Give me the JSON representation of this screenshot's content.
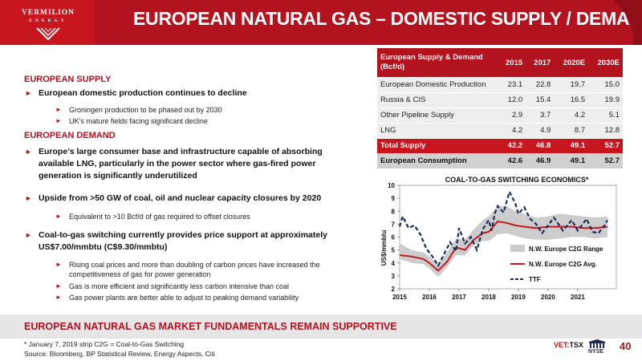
{
  "header": {
    "logo_name": "VERMILION",
    "logo_sub": "ENERGY",
    "title": "EUROPEAN NATURAL GAS – DOMESTIC SUPPLY / DEMAND"
  },
  "left": {
    "supply_heading": "EUROPEAN SUPPLY",
    "supply_bullet": "European domestic production continues to decline",
    "supply_sub": [
      "Groningen production to be phased out by 2030",
      "UK’s mature fields facing significant decline"
    ],
    "demand_heading": "EUROPEAN DEMAND",
    "demand_bullets": [
      "Europe’s large consumer base and infrastructure capable of absorbing available LNG, particularly in the power sector where gas-fired power generation is significantly underutilized",
      "Upside from >50 GW of coal, oil and nuclear capacity closures by 2020",
      "Coal-to-gas switching currently provides price support at approximately US$7.00/mmbtu (C$9.30/mmbtu)"
    ],
    "demand_sub_1": "Equivalent to >10 Bcf/d of gas required to offset closures",
    "demand_sub_2": [
      "Rising coal prices and more than doubling of carbon prices have increased the competitiveness of gas for power generation",
      "Gas is more efficient and significantly less carbon intensive than coal",
      "Gas power plants are better able to adjust to peaking demand variability"
    ]
  },
  "table": {
    "header": [
      "European Supply & Demand (Bcf/d)",
      "2015",
      "2017",
      "2020E",
      "2030E"
    ],
    "rows": [
      [
        "European Domestic Production",
        "23.1",
        "22.8",
        "19.7",
        "15.0"
      ],
      [
        "Russia & CIS",
        "12.0",
        "15.4",
        "16.5",
        "19.9"
      ],
      [
        "Other Pipeline Supply",
        "2.9",
        "3.7",
        "4.2",
        "5.1"
      ],
      [
        "LNG",
        "4.2",
        "4.9",
        "8.7",
        "12.8"
      ]
    ],
    "total": [
      "Total Supply",
      "42.2",
      "46.8",
      "49.1",
      "52.7"
    ],
    "consumption": [
      "European Consumption",
      "42.6",
      "46.9",
      "49.1",
      "52.7"
    ]
  },
  "chart_data": {
    "type": "line",
    "title": "COAL-TO-GAS SWITCHING ECONOMICS*",
    "ylabel": "US$/mmbtu",
    "xlabel": "",
    "ylim": [
      2,
      10
    ],
    "yticks": [
      "2",
      "3",
      "4",
      "5",
      "6",
      "7",
      "8",
      "9",
      "10"
    ],
    "xlim": [
      2015,
      2022.3
    ],
    "xticks": [
      "2015",
      "2016",
      "2017",
      "2018",
      "2019",
      "2020",
      "2021"
    ],
    "grid": false,
    "legend_position": "bottom-right",
    "series": [
      {
        "name": "N.W. Europe C2G Range",
        "kind": "band",
        "color": "#cccccc",
        "x": [
          2015.0,
          2015.4,
          2015.8,
          2016.0,
          2016.3,
          2016.6,
          2016.9,
          2017.2,
          2017.5,
          2017.8,
          2018.0,
          2018.3,
          2018.6,
          2018.9,
          2019.2,
          2019.6,
          2020.0,
          2020.4,
          2020.8,
          2021.2,
          2021.6,
          2022.0
        ],
        "low": [
          4.3,
          4.0,
          3.9,
          3.6,
          2.9,
          3.7,
          4.6,
          4.6,
          5.4,
          5.7,
          5.7,
          6.2,
          6.3,
          6.1,
          5.9,
          5.8,
          5.8,
          5.9,
          6.0,
          6.0,
          5.9,
          6.0
        ],
        "high": [
          5.5,
          5.0,
          4.8,
          4.5,
          3.9,
          4.8,
          5.9,
          5.8,
          6.6,
          7.3,
          7.6,
          8.4,
          8.4,
          8.0,
          7.8,
          7.5,
          7.6,
          7.8,
          7.7,
          7.6,
          7.5,
          7.6
        ]
      },
      {
        "name": "N.W. Europe C2G Avg.",
        "kind": "line",
        "color": "#c8161f",
        "x": [
          2015.0,
          2015.4,
          2015.8,
          2016.0,
          2016.3,
          2016.6,
          2016.9,
          2017.2,
          2017.5,
          2017.8,
          2018.0,
          2018.3,
          2018.6,
          2018.9,
          2019.2,
          2019.6,
          2020.0,
          2020.4,
          2020.8,
          2021.2,
          2021.6,
          2022.0
        ],
        "y": [
          4.6,
          4.5,
          4.3,
          4.0,
          3.4,
          4.1,
          5.2,
          5.0,
          5.8,
          6.3,
          6.4,
          7.2,
          7.1,
          6.9,
          6.8,
          6.7,
          6.8,
          6.8,
          6.8,
          6.7,
          6.7,
          6.8
        ]
      },
      {
        "name": "TTF",
        "kind": "dashed",
        "color": "#1a2b5c",
        "x": [
          2015.0,
          2015.1,
          2015.3,
          2015.5,
          2015.7,
          2015.9,
          2016.1,
          2016.3,
          2016.5,
          2016.7,
          2016.9,
          2017.0,
          2017.2,
          2017.4,
          2017.6,
          2017.8,
          2018.0,
          2018.1,
          2018.2,
          2018.3,
          2018.5,
          2018.7,
          2018.9,
          2019.0,
          2019.2,
          2019.4,
          2019.6,
          2019.8,
          2020.0,
          2020.2,
          2020.5,
          2020.8,
          2021.0,
          2021.3,
          2021.5,
          2021.7,
          2021.9,
          2022.0
        ],
        "y": [
          6.8,
          7.6,
          6.7,
          6.9,
          6.2,
          5.1,
          4.5,
          3.8,
          4.7,
          5.6,
          4.9,
          6.7,
          5.5,
          6.0,
          5.0,
          6.6,
          7.3,
          6.5,
          7.8,
          8.4,
          7.9,
          9.5,
          8.6,
          7.8,
          8.3,
          7.4,
          7.0,
          6.3,
          6.9,
          7.5,
          6.5,
          7.3,
          6.5,
          7.4,
          6.4,
          6.3,
          6.9,
          7.3
        ]
      }
    ]
  },
  "footer": {
    "banner": "EUROPEAN NATURAL GAS MARKET FUNDAMENTALS REMAIN SUPPORTIVE",
    "note1": "* January 7, 2019 strip    C2G = Coal-to-Gas Switching",
    "note2": "Source: Bloomberg, BP Statistical Review, Energy Aspects, Citi",
    "vet": "VET:",
    "tsx": "TSX",
    "nyse": "NYSE",
    "page": "40"
  },
  "colors": {
    "brand_red": "#b3121f",
    "band_gray": "#cccccc",
    "ttf_navy": "#1a2b5c"
  }
}
